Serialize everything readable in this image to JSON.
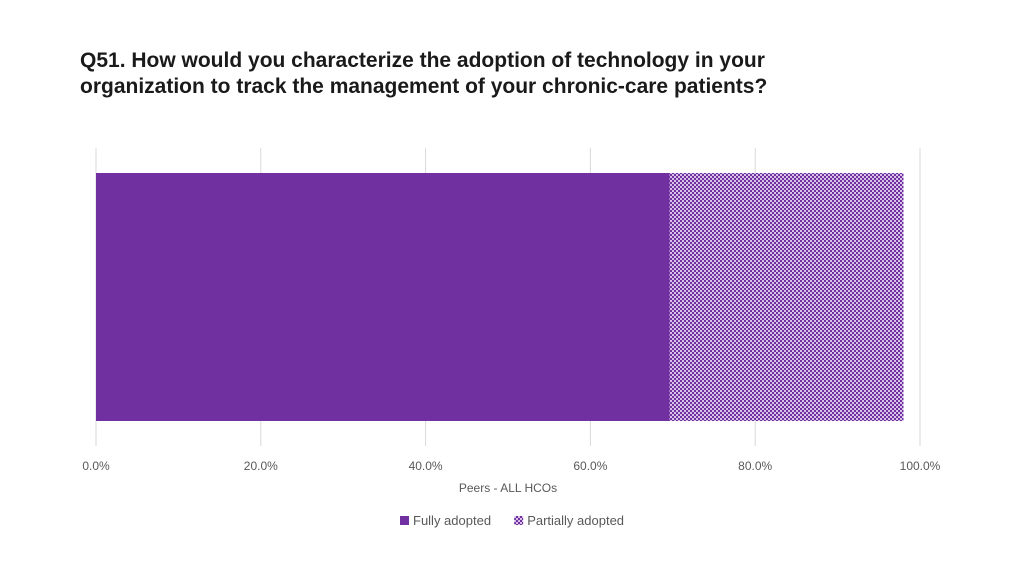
{
  "chart_data": {
    "type": "bar",
    "orientation": "horizontal",
    "stacked": true,
    "title": "Q51. How would you characterize the adoption of technology in your\norganization to track the management of your chronic-care patients?",
    "categories": [
      ""
    ],
    "series": [
      {
        "name": "Fully adopted",
        "values": [
          69.6
        ],
        "color": "#7030a0",
        "pattern": "solid"
      },
      {
        "name": "Partially adopted",
        "values": [
          28.4
        ],
        "color": "#b07fd1",
        "pattern": "checker"
      }
    ],
    "xlim": [
      0,
      100
    ],
    "xticks": [
      "0.0%",
      "20.0%",
      "40.0%",
      "60.0%",
      "80.0%",
      "100.0%"
    ],
    "xlabel": "Peers - ALL HCOs",
    "ylabel": "",
    "grid": true,
    "legend": "bottom"
  }
}
